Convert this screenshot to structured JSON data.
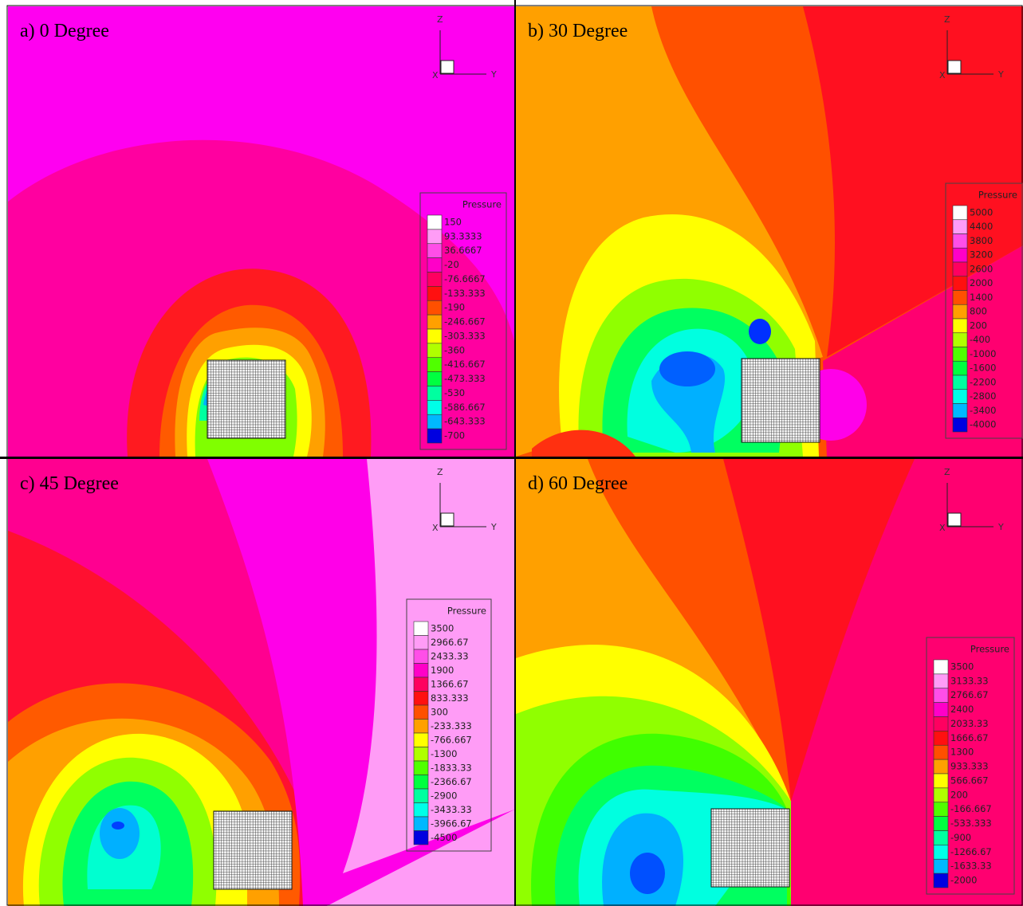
{
  "palette": [
    "#ffffff",
    "#ff9cf6",
    "#ff4ee8",
    "#ff00c8",
    "#ff0060",
    "#ff1010",
    "#ff5000",
    "#ffa000",
    "#ffff00",
    "#b0ff00",
    "#50ff00",
    "#00ff40",
    "#00ffa0",
    "#00ffe8",
    "#00b8ff",
    "#0050ff",
    "#0000e0"
  ],
  "panels": [
    {
      "title": "a) 0 Degree",
      "axes": {
        "z": "Z",
        "y": "Y",
        "x": "X"
      },
      "legend": {
        "title": "Pressure",
        "levels": [
          150,
          93.3333,
          36.6667,
          -20,
          -76.6667,
          -133.333,
          -190,
          -246.667,
          -303.333,
          -360,
          -416.667,
          -473.333,
          -530,
          -586.667,
          -643.333,
          -700
        ]
      }
    },
    {
      "title": "b) 30 Degree",
      "axes": {
        "z": "Z",
        "y": "Y",
        "x": "X"
      },
      "legend": {
        "title": "Pressure",
        "levels": [
          5000,
          4400,
          3800,
          3200,
          2600,
          2000,
          1400,
          800,
          200,
          -400,
          -1000,
          -1600,
          -2200,
          -2800,
          -3400,
          -4000
        ]
      }
    },
    {
      "title": "c) 45 Degree",
      "axes": {
        "z": "Z",
        "y": "Y",
        "x": "X"
      },
      "legend": {
        "title": "Pressure",
        "levels": [
          3500,
          2966.67,
          2433.33,
          1900,
          1366.67,
          833.333,
          300,
          -233.333,
          -766.667,
          -1300,
          -1833.33,
          -2366.67,
          -2900,
          -3433.33,
          -3966.67,
          -4500
        ]
      }
    },
    {
      "title": "d) 60 Degree",
      "axes": {
        "z": "Z",
        "y": "Y",
        "x": "X"
      },
      "legend": {
        "title": "Pressure",
        "levels": [
          3500,
          3133.33,
          2766.67,
          2400,
          2033.33,
          1666.67,
          1300,
          933.333,
          566.667,
          200,
          -166.667,
          -533.333,
          -900,
          -1266.67,
          -1633.33,
          -2000
        ]
      }
    }
  ]
}
